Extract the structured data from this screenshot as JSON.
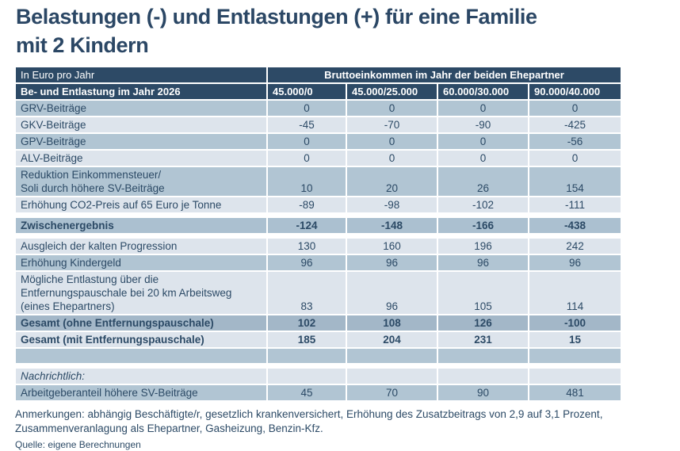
{
  "colors": {
    "header-bg": "#2d4a66",
    "row-dark": "#b1c5d3",
    "row-light": "#dde4ec",
    "row-subtotal": "#abc0d0",
    "row-total": "#a3b7c8",
    "text-navy": "#2c4a66",
    "title-navy": "#2b4765"
  },
  "chart_data": {
    "type": "table",
    "title": "Belastungen (-) und Entlastungen (+) für eine Familie\nmit 2 Kindern",
    "unit_header": "In Euro pro Jahr",
    "group_header": "Bruttoeinkommen im Jahr der beiden Ehepartner",
    "row_dimension": "Be- und Entlastung im Jahr 2026",
    "columns": [
      "45.000/0",
      "45.000/25.000",
      "60.000/30.000",
      "90.000/40.000"
    ],
    "rows": [
      {
        "label": "GRV-Beiträge",
        "values": [
          "0",
          "0",
          "0",
          "0"
        ],
        "bg": "dark"
      },
      {
        "label": "GKV-Beiträge",
        "values": [
          "-45",
          "-70",
          "-90",
          "-425"
        ],
        "bg": "light"
      },
      {
        "label": "GPV-Beiträge",
        "values": [
          "0",
          "0",
          "0",
          "-56"
        ],
        "bg": "dark"
      },
      {
        "label": "ALV-Beiträge",
        "values": [
          "0",
          "0",
          "0",
          "0"
        ],
        "bg": "light"
      },
      {
        "label": "Reduktion Einkommensteuer/\nSoli durch höhere SV-Beiträge",
        "values": [
          "10",
          "20",
          "26",
          "154"
        ],
        "bg": "dark"
      },
      {
        "label": "Erhöhung CO2-Preis auf 65 Euro je Tonne",
        "values": [
          "-89",
          "-98",
          "-102",
          "-111"
        ],
        "bg": "light"
      },
      {
        "spacer": true
      },
      {
        "label": "Zwischenergebnis",
        "values": [
          "-124",
          "-148",
          "-166",
          "-438"
        ],
        "bg": "subtotal",
        "bold": true
      },
      {
        "spacer": true
      },
      {
        "label": "Ausgleich der kalten Progression",
        "values": [
          "130",
          "160",
          "196",
          "242"
        ],
        "bg": "light"
      },
      {
        "label": "Erhöhung Kindergeld",
        "values": [
          "96",
          "96",
          "96",
          "96"
        ],
        "bg": "dark"
      },
      {
        "label": "Mögliche Entlastung über die\nEntfernungspauschale bei 20 km Arbeitsweg\n(eines Ehepartners)",
        "values": [
          "83",
          "96",
          "105",
          "114"
        ],
        "bg": "light"
      },
      {
        "label": "Gesamt (ohne Entfernungspauschale)",
        "values": [
          "102",
          "108",
          "126",
          "-100"
        ],
        "bg": "total",
        "bold": true
      },
      {
        "label": "Gesamt (mit Entfernungspauschale)",
        "values": [
          "185",
          "204",
          "231",
          "15"
        ],
        "bg": "light",
        "bold": true
      },
      {
        "label": "",
        "values": [
          "",
          "",
          "",
          ""
        ],
        "bg": "dark"
      },
      {
        "spacer": true
      },
      {
        "label": "Nachrichtlich:",
        "values": [
          "",
          "",
          "",
          ""
        ],
        "bg": "light",
        "italic": true
      },
      {
        "label": "Arbeitgeberanteil höhere SV-Beiträge",
        "values": [
          "45",
          "70",
          "90",
          "481"
        ],
        "bg": "dark"
      }
    ],
    "notes": "Anmerkungen: abhängig Beschäftigte/r, gesetzlich krankenversichert, Erhöhung des Zusatzbeitrags von 2,9 auf 3,1 Prozent,\nZusammenveranlagung als Ehepartner, Gasheizung, Benzin-Kfz.",
    "source": "Quelle: eigene Berechnungen"
  }
}
